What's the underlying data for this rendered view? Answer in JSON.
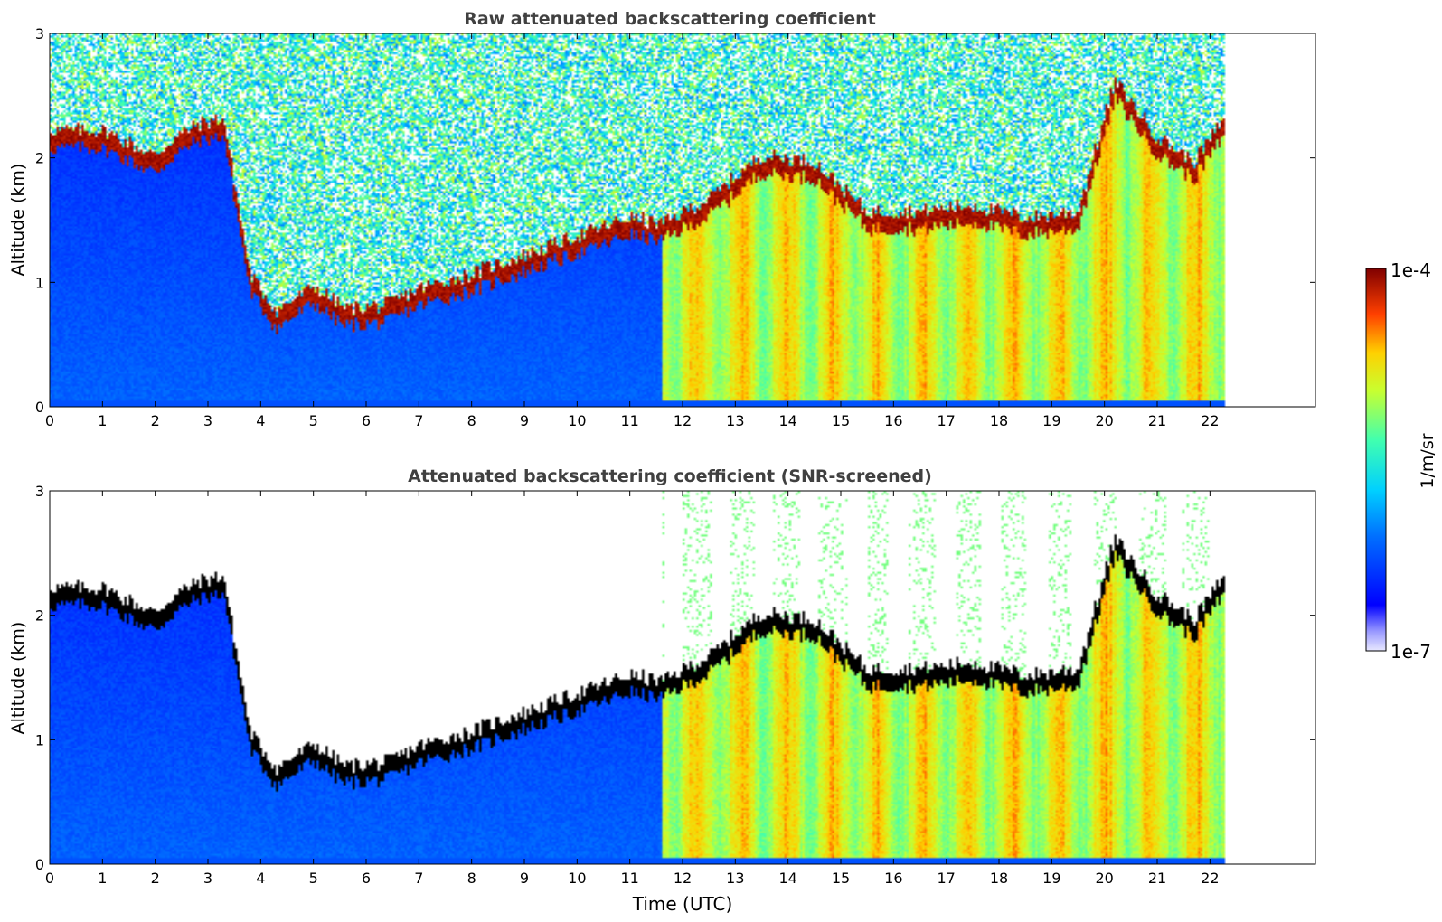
{
  "chart_data": [
    {
      "type": "heatmap",
      "title": "Raw attenuated backscattering coefficient",
      "ylabel": "Altitude (km)",
      "xlabel": "",
      "xlim": [
        0,
        24
      ],
      "ylim": [
        0,
        3
      ],
      "xticks": [
        "0",
        "1",
        "2",
        "3",
        "4",
        "5",
        "6",
        "7",
        "8",
        "9",
        "10",
        "11",
        "12",
        "13",
        "14",
        "15",
        "16",
        "17",
        "18",
        "19",
        "20",
        "21",
        "22"
      ],
      "yticks": [
        "0",
        "1",
        "2",
        "3"
      ],
      "data_extent_hours": [
        0,
        22.3
      ],
      "screened": false,
      "cloud_layer": [
        [
          1,
          2.15
        ],
        [
          1.5,
          2.05
        ],
        [
          2,
          1.95
        ],
        [
          2.4,
          2.1
        ],
        [
          2.8,
          2.2
        ],
        [
          3.3,
          2.25
        ],
        [
          3.8,
          1.0
        ],
        [
          4.3,
          0.7
        ],
        [
          5,
          0.9
        ],
        [
          5.6,
          0.72
        ],
        [
          6.4,
          0.75
        ],
        [
          7,
          0.88
        ],
        [
          8,
          1.0
        ],
        [
          9,
          1.15
        ],
        [
          10,
          1.3
        ],
        [
          11,
          1.45
        ],
        [
          11.6,
          1.4
        ],
        [
          12.5,
          1.6
        ],
        [
          13.5,
          1.95
        ],
        [
          14.5,
          1.9
        ],
        [
          15.5,
          1.5
        ],
        [
          16.5,
          1.5
        ],
        [
          17.5,
          1.55
        ],
        [
          18.5,
          1.45
        ],
        [
          19.5,
          1.5
        ],
        [
          20.2,
          2.55
        ],
        [
          21,
          2.1
        ],
        [
          21.7,
          1.9
        ],
        [
          22.2,
          2.2
        ]
      ],
      "colorbar": {
        "min_label": "1e-7",
        "max_label": "1e-4",
        "label": "1/m/sr",
        "scale": "log"
      }
    },
    {
      "type": "heatmap",
      "title": "Attenuated backscattering coefficient (SNR-screened)",
      "ylabel": "Altitude (km)",
      "xlabel": "Time (UTC)",
      "xlim": [
        0,
        24
      ],
      "ylim": [
        0,
        3
      ],
      "xticks": [
        "0",
        "1",
        "2",
        "3",
        "4",
        "5",
        "6",
        "7",
        "8",
        "9",
        "10",
        "11",
        "12",
        "13",
        "14",
        "15",
        "16",
        "17",
        "18",
        "19",
        "20",
        "21",
        "22"
      ],
      "yticks": [
        "0",
        "1",
        "2",
        "3"
      ],
      "data_extent_hours": [
        0,
        22.3
      ],
      "screened": true,
      "cloud_layer": [
        [
          1,
          2.15
        ],
        [
          1.5,
          2.05
        ],
        [
          2,
          1.95
        ],
        [
          2.4,
          2.1
        ],
        [
          2.8,
          2.2
        ],
        [
          3.3,
          2.25
        ],
        [
          3.8,
          1.0
        ],
        [
          4.3,
          0.7
        ],
        [
          5,
          0.9
        ],
        [
          5.6,
          0.72
        ],
        [
          6.4,
          0.75
        ],
        [
          7,
          0.88
        ],
        [
          8,
          1.0
        ],
        [
          9,
          1.15
        ],
        [
          10,
          1.3
        ],
        [
          11,
          1.45
        ],
        [
          11.6,
          1.4
        ],
        [
          12.5,
          1.6
        ],
        [
          13.5,
          1.95
        ],
        [
          14.5,
          1.9
        ],
        [
          15.5,
          1.5
        ],
        [
          16.5,
          1.5
        ],
        [
          17.5,
          1.55
        ],
        [
          18.5,
          1.45
        ],
        [
          19.5,
          1.5
        ],
        [
          20.2,
          2.55
        ],
        [
          21,
          2.1
        ],
        [
          21.7,
          1.9
        ],
        [
          22.2,
          2.2
        ]
      ]
    }
  ],
  "colors": {
    "title": "#404040",
    "axis": "#000000",
    "missing": "#ffffff",
    "screened_cloud": "#000000"
  }
}
